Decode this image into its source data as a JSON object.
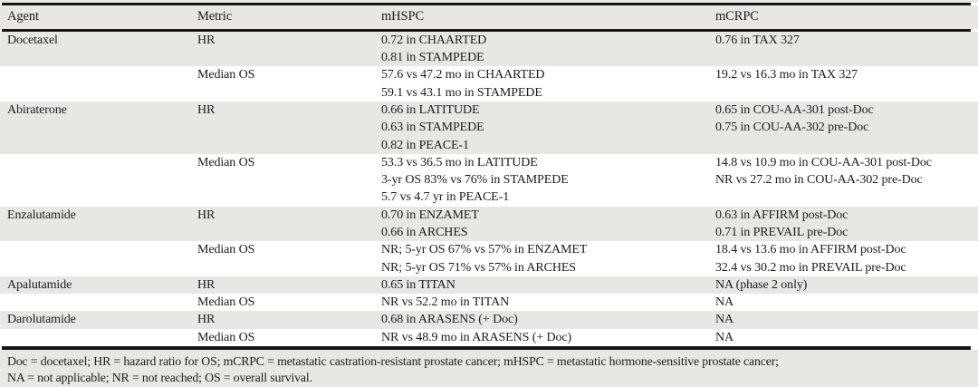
{
  "table": {
    "columns": [
      "Agent",
      "Metric",
      "mHSPC",
      "mCRPC"
    ],
    "rows": [
      {
        "agent": "Docetaxel",
        "metric": "HR",
        "mhspc": [
          "0.72 in CHAARTED",
          "0.81 in STAMPEDE"
        ],
        "mcrpc": [
          "0.76 in TAX 327"
        ],
        "shaded": true
      },
      {
        "agent": "",
        "metric": "Median OS",
        "mhspc": [
          "57.6 vs 47.2 mo in CHAARTED",
          "59.1 vs 43.1 mo in STAMPEDE"
        ],
        "mcrpc": [
          "19.2 vs 16.3 mo in TAX 327"
        ],
        "shaded": false
      },
      {
        "agent": "Abiraterone",
        "metric": "HR",
        "mhspc": [
          "0.66 in LATITUDE",
          "0.63 in STAMPEDE",
          "0.82 in PEACE-1"
        ],
        "mcrpc": [
          "0.65 in COU-AA-301 post-Doc",
          "0.75 in COU-AA-302 pre-Doc"
        ],
        "shaded": true
      },
      {
        "agent": "",
        "metric": "Median OS",
        "mhspc": [
          "53.3 vs 36.5 mo in LATITUDE",
          "3-yr OS 83% vs 76% in STAMPEDE",
          "5.7 vs 4.7 yr in PEACE-1"
        ],
        "mcrpc": [
          "14.8 vs 10.9 mo in COU-AA-301 post-Doc",
          "NR vs 27.2 mo in COU-AA-302 pre-Doc"
        ],
        "shaded": false
      },
      {
        "agent": "Enzalutamide",
        "metric": "HR",
        "mhspc": [
          "0.70 in ENZAMET",
          "0.66 in ARCHES"
        ],
        "mcrpc": [
          "0.63 in AFFIRM post-Doc",
          "0.71 in PREVAIL pre-Doc"
        ],
        "shaded": true
      },
      {
        "agent": "",
        "metric": "Median OS",
        "mhspc": [
          "NR; 5-yr OS 67% vs 57% in ENZAMET",
          "NR; 5-yr OS 71% vs 57% in ARCHES"
        ],
        "mcrpc": [
          "18.4 vs 13.6 mo in AFFIRM post-Doc",
          "32.4 vs 30.2 mo in PREVAIL pre-Doc"
        ],
        "shaded": false
      },
      {
        "agent": "Apalutamide",
        "metric": "HR",
        "mhspc": [
          "0.65 in TITAN"
        ],
        "mcrpc": [
          "NA (phase 2 only)"
        ],
        "shaded": true
      },
      {
        "agent": "",
        "metric": "Median OS",
        "mhspc": [
          "NR vs 52.2 mo in TITAN"
        ],
        "mcrpc": [
          "NA"
        ],
        "shaded": false
      },
      {
        "agent": "Darolutamide",
        "metric": "HR",
        "mhspc": [
          "0.68 in ARASENS (+ Doc)"
        ],
        "mcrpc": [
          "NA"
        ],
        "shaded": true
      },
      {
        "agent": "",
        "metric": "Median OS",
        "mhspc": [
          "NR vs 48.9 mo in ARASENS (+ Doc)"
        ],
        "mcrpc": [
          "NA"
        ],
        "shaded": false
      }
    ],
    "footnote_lines": [
      "Doc = docetaxel; HR = hazard ratio for OS; mCRPC = metastatic castration-resistant prostate cancer; mHSPC = metastatic hormone-sensitive prostate cancer;",
      "NA = not applicable; NR = not reached; OS = overall survival."
    ],
    "colors": {
      "shade": "#e8e7e4",
      "rule": "#161616",
      "text": "#1c1c1c",
      "row_bg": "#ffffff"
    }
  }
}
